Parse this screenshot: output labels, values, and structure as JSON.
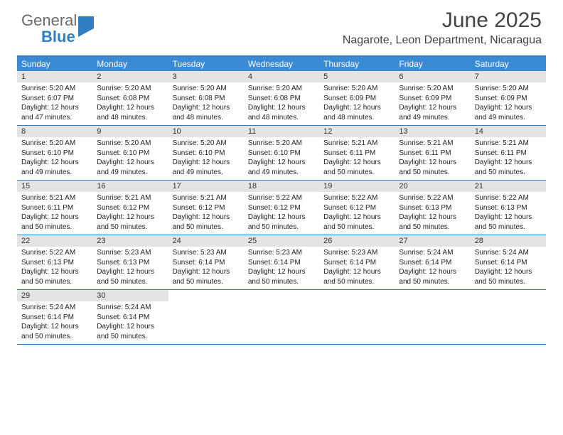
{
  "brand": {
    "name1": "General",
    "name2": "Blue"
  },
  "title": "June 2025",
  "location": "Nagarote, Leon Department, Nicaragua",
  "colors": {
    "headerBar": "#3b8bd4",
    "ruler": "#2f7fc2",
    "dayNumBg": "#e4e4e4",
    "text": "#222222",
    "titleText": "#444444",
    "white": "#ffffff"
  },
  "daysOfWeek": [
    "Sunday",
    "Monday",
    "Tuesday",
    "Wednesday",
    "Thursday",
    "Friday",
    "Saturday"
  ],
  "weeks": [
    [
      {
        "n": "1",
        "sr": "5:20 AM",
        "ss": "6:07 PM",
        "dl": "12 hours and 47 minutes."
      },
      {
        "n": "2",
        "sr": "5:20 AM",
        "ss": "6:08 PM",
        "dl": "12 hours and 48 minutes."
      },
      {
        "n": "3",
        "sr": "5:20 AM",
        "ss": "6:08 PM",
        "dl": "12 hours and 48 minutes."
      },
      {
        "n": "4",
        "sr": "5:20 AM",
        "ss": "6:08 PM",
        "dl": "12 hours and 48 minutes."
      },
      {
        "n": "5",
        "sr": "5:20 AM",
        "ss": "6:09 PM",
        "dl": "12 hours and 48 minutes."
      },
      {
        "n": "6",
        "sr": "5:20 AM",
        "ss": "6:09 PM",
        "dl": "12 hours and 49 minutes."
      },
      {
        "n": "7",
        "sr": "5:20 AM",
        "ss": "6:09 PM",
        "dl": "12 hours and 49 minutes."
      }
    ],
    [
      {
        "n": "8",
        "sr": "5:20 AM",
        "ss": "6:10 PM",
        "dl": "12 hours and 49 minutes."
      },
      {
        "n": "9",
        "sr": "5:20 AM",
        "ss": "6:10 PM",
        "dl": "12 hours and 49 minutes."
      },
      {
        "n": "10",
        "sr": "5:20 AM",
        "ss": "6:10 PM",
        "dl": "12 hours and 49 minutes."
      },
      {
        "n": "11",
        "sr": "5:20 AM",
        "ss": "6:10 PM",
        "dl": "12 hours and 49 minutes."
      },
      {
        "n": "12",
        "sr": "5:21 AM",
        "ss": "6:11 PM",
        "dl": "12 hours and 50 minutes."
      },
      {
        "n": "13",
        "sr": "5:21 AM",
        "ss": "6:11 PM",
        "dl": "12 hours and 50 minutes."
      },
      {
        "n": "14",
        "sr": "5:21 AM",
        "ss": "6:11 PM",
        "dl": "12 hours and 50 minutes."
      }
    ],
    [
      {
        "n": "15",
        "sr": "5:21 AM",
        "ss": "6:11 PM",
        "dl": "12 hours and 50 minutes."
      },
      {
        "n": "16",
        "sr": "5:21 AM",
        "ss": "6:12 PM",
        "dl": "12 hours and 50 minutes."
      },
      {
        "n": "17",
        "sr": "5:21 AM",
        "ss": "6:12 PM",
        "dl": "12 hours and 50 minutes."
      },
      {
        "n": "18",
        "sr": "5:22 AM",
        "ss": "6:12 PM",
        "dl": "12 hours and 50 minutes."
      },
      {
        "n": "19",
        "sr": "5:22 AM",
        "ss": "6:12 PM",
        "dl": "12 hours and 50 minutes."
      },
      {
        "n": "20",
        "sr": "5:22 AM",
        "ss": "6:13 PM",
        "dl": "12 hours and 50 minutes."
      },
      {
        "n": "21",
        "sr": "5:22 AM",
        "ss": "6:13 PM",
        "dl": "12 hours and 50 minutes."
      }
    ],
    [
      {
        "n": "22",
        "sr": "5:22 AM",
        "ss": "6:13 PM",
        "dl": "12 hours and 50 minutes."
      },
      {
        "n": "23",
        "sr": "5:23 AM",
        "ss": "6:13 PM",
        "dl": "12 hours and 50 minutes."
      },
      {
        "n": "24",
        "sr": "5:23 AM",
        "ss": "6:14 PM",
        "dl": "12 hours and 50 minutes."
      },
      {
        "n": "25",
        "sr": "5:23 AM",
        "ss": "6:14 PM",
        "dl": "12 hours and 50 minutes."
      },
      {
        "n": "26",
        "sr": "5:23 AM",
        "ss": "6:14 PM",
        "dl": "12 hours and 50 minutes."
      },
      {
        "n": "27",
        "sr": "5:24 AM",
        "ss": "6:14 PM",
        "dl": "12 hours and 50 minutes."
      },
      {
        "n": "28",
        "sr": "5:24 AM",
        "ss": "6:14 PM",
        "dl": "12 hours and 50 minutes."
      }
    ],
    [
      {
        "n": "29",
        "sr": "5:24 AM",
        "ss": "6:14 PM",
        "dl": "12 hours and 50 minutes."
      },
      {
        "n": "30",
        "sr": "5:24 AM",
        "ss": "6:14 PM",
        "dl": "12 hours and 50 minutes."
      },
      {
        "empty": true
      },
      {
        "empty": true
      },
      {
        "empty": true
      },
      {
        "empty": true
      },
      {
        "empty": true
      }
    ]
  ],
  "labels": {
    "sunrise": "Sunrise: ",
    "sunset": "Sunset: ",
    "daylight": "Daylight: "
  }
}
